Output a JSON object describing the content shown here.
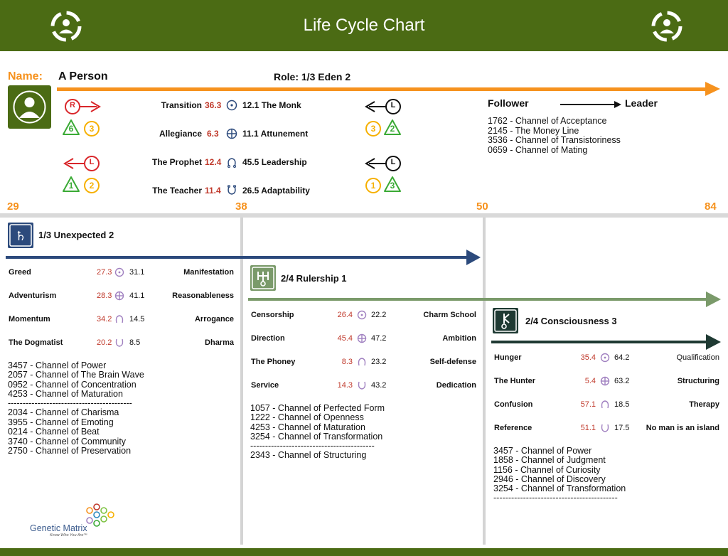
{
  "header": {
    "title": "Life Cycle Chart"
  },
  "profile": {
    "name_label": "Name:",
    "name": "A Person",
    "role": "Role:  1/3  Eden 2"
  },
  "top_rows": [
    {
      "label": "Transition",
      "num": "36.3",
      "value": "12.1 The Monk"
    },
    {
      "label": "Allegiance",
      "num": "6.3",
      "value": "11.1 Attunement"
    },
    {
      "label": "The Prophet",
      "num": "12.4",
      "value": "45.5 Leadership"
    },
    {
      "label": "The Teacher",
      "num": "11.4",
      "value": "26.5 Adaptability"
    }
  ],
  "badges": {
    "left_top_letter": "R",
    "left_top_nums": [
      "6",
      "3"
    ],
    "left_bottom_letter": "L",
    "left_bottom_nums": [
      "1",
      "2"
    ],
    "right_top_letter": "L",
    "right_top_nums": [
      "3",
      "2"
    ],
    "right_bottom_letter": "L",
    "right_bottom_nums": [
      "1",
      "3"
    ]
  },
  "follower_leader": {
    "from": "Follower",
    "to": "Leader"
  },
  "top_channels": [
    "1762 - Channel of Acceptance",
    "2145 - The Money Line",
    "3536 - Channel of Transistoriness",
    "0659 - Channel of Mating"
  ],
  "ages": [
    "29",
    "38",
    "50",
    "84"
  ],
  "sections": [
    {
      "title": "1/3  Unexpected 2",
      "rows": [
        {
          "label": "Greed",
          "num": "27.3",
          "value": "31.1",
          "right": "Manifestation"
        },
        {
          "label": "Adventurism",
          "num": "28.3",
          "value": "41.1",
          "right": "Reasonableness"
        },
        {
          "label": "Momentum",
          "num": "34.2",
          "value": "14.5",
          "right": "Arrogance"
        },
        {
          "label": "The Dogmatist",
          "num": "20.2",
          "value": "8.5",
          "right": "Dharma"
        }
      ],
      "channels": [
        "3457 - Channel of Power",
        "2057 - Channel of The Brain Wave",
        "0952 - Channel of Concentration",
        "4253 - Channel of Maturation",
        "------------------------------------------",
        "2034 - Channel of Charisma",
        "3955 - Channel of Emoting",
        "0214 - Channel of Beat",
        "3740 - Channel of Community",
        "2750 - Channel of Preservation"
      ]
    },
    {
      "title": "2/4  Rulership 1",
      "rows": [
        {
          "label": "Censorship",
          "num": "26.4",
          "value": "22.2",
          "right": "Charm School"
        },
        {
          "label": "Direction",
          "num": "45.4",
          "value": "47.2",
          "right": "Ambition"
        },
        {
          "label": "The Phoney",
          "num": "8.3",
          "value": "23.2",
          "right": "Self-defense"
        },
        {
          "label": "Service",
          "num": "14.3",
          "value": "43.2",
          "right": "Dedication"
        }
      ],
      "channels": [
        "1057 - Channel of Perfected Form",
        "1222 - Channel of Openness",
        "4253 - Channel of Maturation",
        "3254 - Channel of Transformation",
        "------------------------------------------",
        "2343 - Channel of Structuring"
      ]
    },
    {
      "title": "2/4  Consciousness 3",
      "rows": [
        {
          "label": "Hunger",
          "num": "35.4",
          "value": "64.2",
          "right": "Qualification"
        },
        {
          "label": "The Hunter",
          "num": "5.4",
          "value": "63.2",
          "right": "Structuring"
        },
        {
          "label": "Confusion",
          "num": "57.1",
          "value": "18.5",
          "right": "Therapy"
        },
        {
          "label": "Reference",
          "num": "51.1",
          "value": "17.5",
          "right": "No man is an island"
        }
      ],
      "channels": [
        "3457 - Channel of Power",
        "1858 - Channel of Judgment",
        "1156 - Channel of Curiosity",
        "2946 - Channel of Discovery",
        "3254 - Channel of Transformation",
        "------------------------------------------"
      ]
    }
  ],
  "logo": {
    "name": "Genetic Matrix",
    "tagline": "Know Who You Are™"
  },
  "colors": {
    "header": "#4b6b14",
    "orange": "#f6921e",
    "navy": "#2c4a7c",
    "sage": "#7a9a6a",
    "dark": "#1f3a33"
  }
}
